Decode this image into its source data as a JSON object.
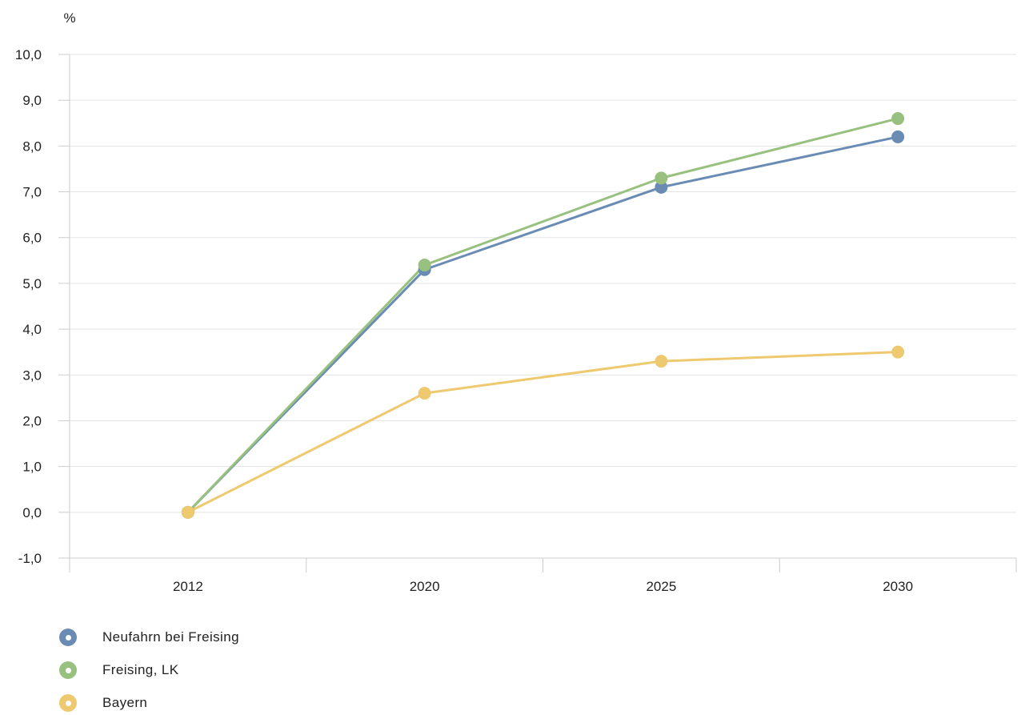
{
  "chart_data": {
    "type": "line",
    "ylabel": "%",
    "xlabel": "",
    "categories": [
      "2012",
      "2020",
      "2025",
      "2030"
    ],
    "ylim": [
      -1,
      10
    ],
    "yticks": [
      -1,
      0,
      1,
      2,
      3,
      4,
      5,
      6,
      7,
      8,
      9,
      10
    ],
    "ytick_labels": [
      "-1,0",
      "0,0",
      "1,0",
      "2,0",
      "3,0",
      "4,0",
      "5,0",
      "6,0",
      "7,0",
      "8,0",
      "9,0",
      "10,0"
    ],
    "grid": true,
    "legend_position": "bottom-left",
    "series": [
      {
        "name": "Neufahrn bei Freising",
        "color": "#6a8cb4",
        "values": [
          0.0,
          5.3,
          7.1,
          8.2
        ]
      },
      {
        "name": "Freising, LK",
        "color": "#98c17f",
        "values": [
          0.0,
          5.4,
          7.3,
          8.6
        ]
      },
      {
        "name": "Bayern",
        "color": "#eec970",
        "values": [
          0.0,
          2.6,
          3.3,
          3.5
        ]
      }
    ]
  }
}
